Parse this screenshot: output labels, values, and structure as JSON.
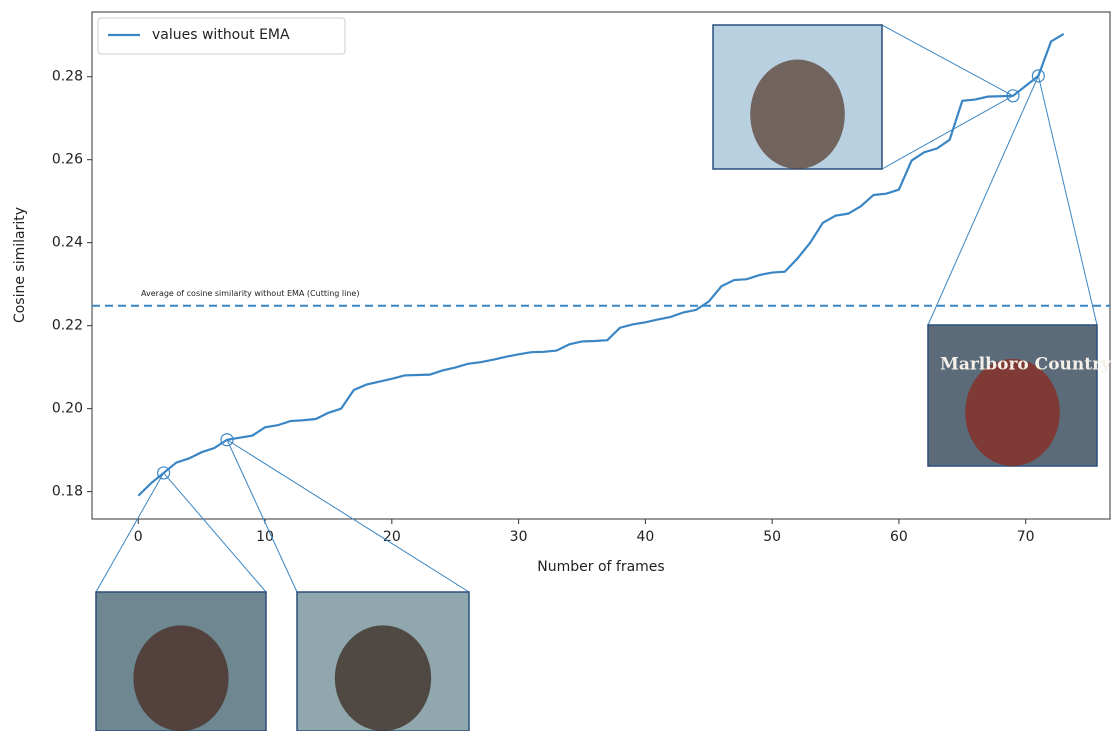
{
  "chart_data": {
    "type": "line",
    "xlabel": "Number of frames",
    "ylabel": "Cosine similarity",
    "x": [
      0,
      1,
      2,
      3,
      4,
      5,
      6,
      7,
      8,
      9,
      10,
      11,
      12,
      13,
      14,
      15,
      16,
      17,
      18,
      19,
      20,
      21,
      22,
      23,
      24,
      25,
      26,
      27,
      28,
      29,
      30,
      31,
      32,
      33,
      34,
      35,
      36,
      37,
      38,
      39,
      40,
      41,
      42,
      43,
      44,
      45,
      46,
      47,
      48,
      49,
      50,
      51,
      52,
      53,
      54,
      55,
      56,
      57,
      58,
      59,
      60,
      61,
      62,
      63,
      64,
      65,
      66,
      67,
      68,
      69,
      70,
      71,
      72,
      73
    ],
    "series": [
      {
        "name": "values without EMA",
        "color": "#3a86c4",
        "values": [
          0.179,
          0.182,
          0.1845,
          0.187,
          0.188,
          0.1895,
          0.1905,
          0.1925,
          0.193,
          0.1935,
          0.1955,
          0.196,
          0.197,
          0.1972,
          0.1975,
          0.199,
          0.2,
          0.2045,
          0.2058,
          0.2065,
          0.2072,
          0.208,
          0.2081,
          0.2082,
          0.2092,
          0.2099,
          0.2108,
          0.2112,
          0.2118,
          0.2125,
          0.2131,
          0.2136,
          0.2137,
          0.214,
          0.2155,
          0.2162,
          0.2163,
          0.2165,
          0.2195,
          0.2203,
          0.2208,
          0.2215,
          0.2221,
          0.2232,
          0.2238,
          0.2258,
          0.2295,
          0.231,
          0.2312,
          0.2322,
          0.2328,
          0.233,
          0.2362,
          0.24,
          0.2448,
          0.2465,
          0.247,
          0.2488,
          0.2515,
          0.2518,
          0.2528,
          0.2598,
          0.2618,
          0.2627,
          0.2648,
          0.2742,
          0.2745,
          0.2752,
          0.2753,
          0.2754,
          0.2778,
          0.2802,
          0.2885,
          0.2903
        ]
      }
    ],
    "hline": {
      "value": 0.2248,
      "label": "Average of cosine similarity without EMA (Cutting line)",
      "color": "#3a86c4"
    },
    "highlight_x": [
      2,
      7,
      69,
      71
    ],
    "image_text": "Marlboro Country",
    "xlim": [
      -3.65,
      76.65
    ],
    "ylim": [
      0.1734,
      0.2956
    ],
    "xticks": [
      0,
      10,
      20,
      30,
      40,
      50,
      60,
      70
    ],
    "yticks": [
      0.18,
      {
        "value": 0.2,
        "label": "0.20"
      },
      0.22,
      0.24,
      0.26,
      0.28
    ],
    "legend": "upper left"
  }
}
